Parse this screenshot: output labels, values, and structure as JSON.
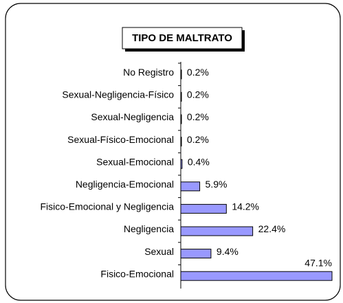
{
  "chart_data": {
    "type": "bar",
    "orientation": "horizontal",
    "title": "TIPO DE MALTRATO",
    "categories": [
      "No Registro",
      "Sexual-Negligencia-Físico",
      "Sexual-Negligencia",
      "Sexual-Físico-Emocional",
      "Sexual-Emocional",
      "Negligencia-Emocional",
      "Fisico-Emocional y Negligencia",
      "Negligencia",
      "Sexual",
      "Fisico-Emocional"
    ],
    "values": [
      0.2,
      0.2,
      0.2,
      0.2,
      0.4,
      5.9,
      14.2,
      22.4,
      9.4,
      47.1
    ],
    "value_labels": [
      "0.2%",
      "0.2%",
      "0.2%",
      "0.2%",
      "0.4%",
      "5.9%",
      "14.2%",
      "22.4%",
      "9.4%",
      "47.1%"
    ],
    "color": "#9999ff"
  }
}
